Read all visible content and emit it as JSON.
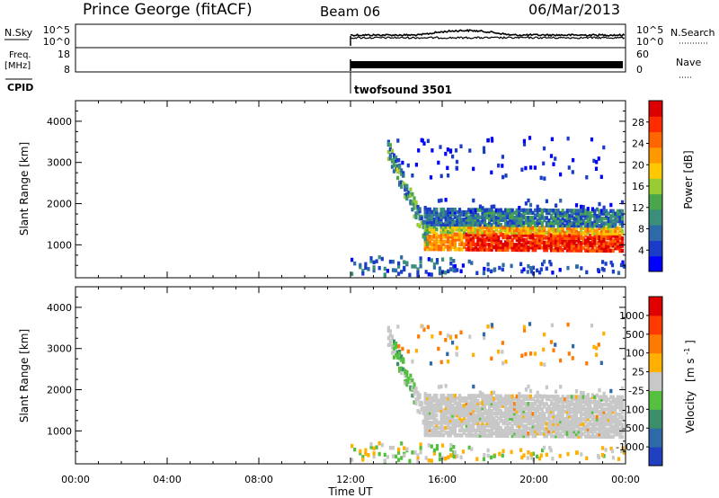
{
  "header": {
    "station": "Prince George (fitACF)",
    "beam": "Beam 06",
    "date": "06/Mar/2013"
  },
  "top_panels": {
    "nsky": {
      "label": "N.Sky",
      "ticks_left": [
        "10^5",
        "10^0"
      ],
      "ticks_right": [
        "10^5",
        "10^0"
      ],
      "right_label": "N.Search",
      "start_x_hour": 12
    },
    "freq": {
      "label_line1": "Freq.",
      "label_line2": "[MHz]",
      "ticks_left": [
        "18",
        "8"
      ],
      "ticks_right": [
        "60",
        "0"
      ],
      "right_label": "Nave",
      "start_x_hour": 12
    },
    "cpid": {
      "label": "CPID",
      "value": "twofsound 3501",
      "start_x_hour": 12
    }
  },
  "chart_data": [
    {
      "type": "heatmap",
      "name": "power",
      "ylabel": "Slant Range [km]",
      "yticks": [
        "1000",
        "2000",
        "3000",
        "4000"
      ],
      "ylim": [
        200,
        4500
      ],
      "xlim": [
        0,
        24
      ],
      "colorbar": {
        "label": "Power [dB]",
        "ticks": [
          "4",
          "8",
          "12",
          "16",
          "20",
          "24",
          "28"
        ],
        "range": [
          0,
          32
        ],
        "colors": [
          "#0000ff",
          "#1a3cc8",
          "#2e6aa8",
          "#3b8f7a",
          "#4aa64a",
          "#99cc33",
          "#ffc800",
          "#ff9900",
          "#ff6600",
          "#ff2a00",
          "#dd0000"
        ]
      }
    },
    {
      "type": "heatmap",
      "name": "velocity",
      "ylabel": "Slant Range [km]",
      "yticks": [
        "1000",
        "2000",
        "3000",
        "4000"
      ],
      "ylim": [
        200,
        4500
      ],
      "xlim": [
        0,
        24
      ],
      "colorbar": {
        "label": "Velocity",
        "label_unit": "[m s",
        "label_exp": "-1",
        "label_end": "]",
        "ticks": [
          "1000",
          "500",
          "100",
          "25",
          "-25",
          "-100",
          "-500",
          "-1000"
        ],
        "colors": [
          "#2040c0",
          "#2e6aa8",
          "#3b8f6a",
          "#55c040",
          "#c8c8c8",
          "#ffb000",
          "#ff7a00",
          "#ff3a00",
          "#e00000"
        ]
      }
    }
  ],
  "xaxis": {
    "ticks": [
      "00:00",
      "04:00",
      "08:00",
      "12:00",
      "16:00",
      "20:00",
      "00:00"
    ],
    "hours": [
      0,
      4,
      8,
      12,
      16,
      20,
      24
    ],
    "label": "Time UT"
  }
}
